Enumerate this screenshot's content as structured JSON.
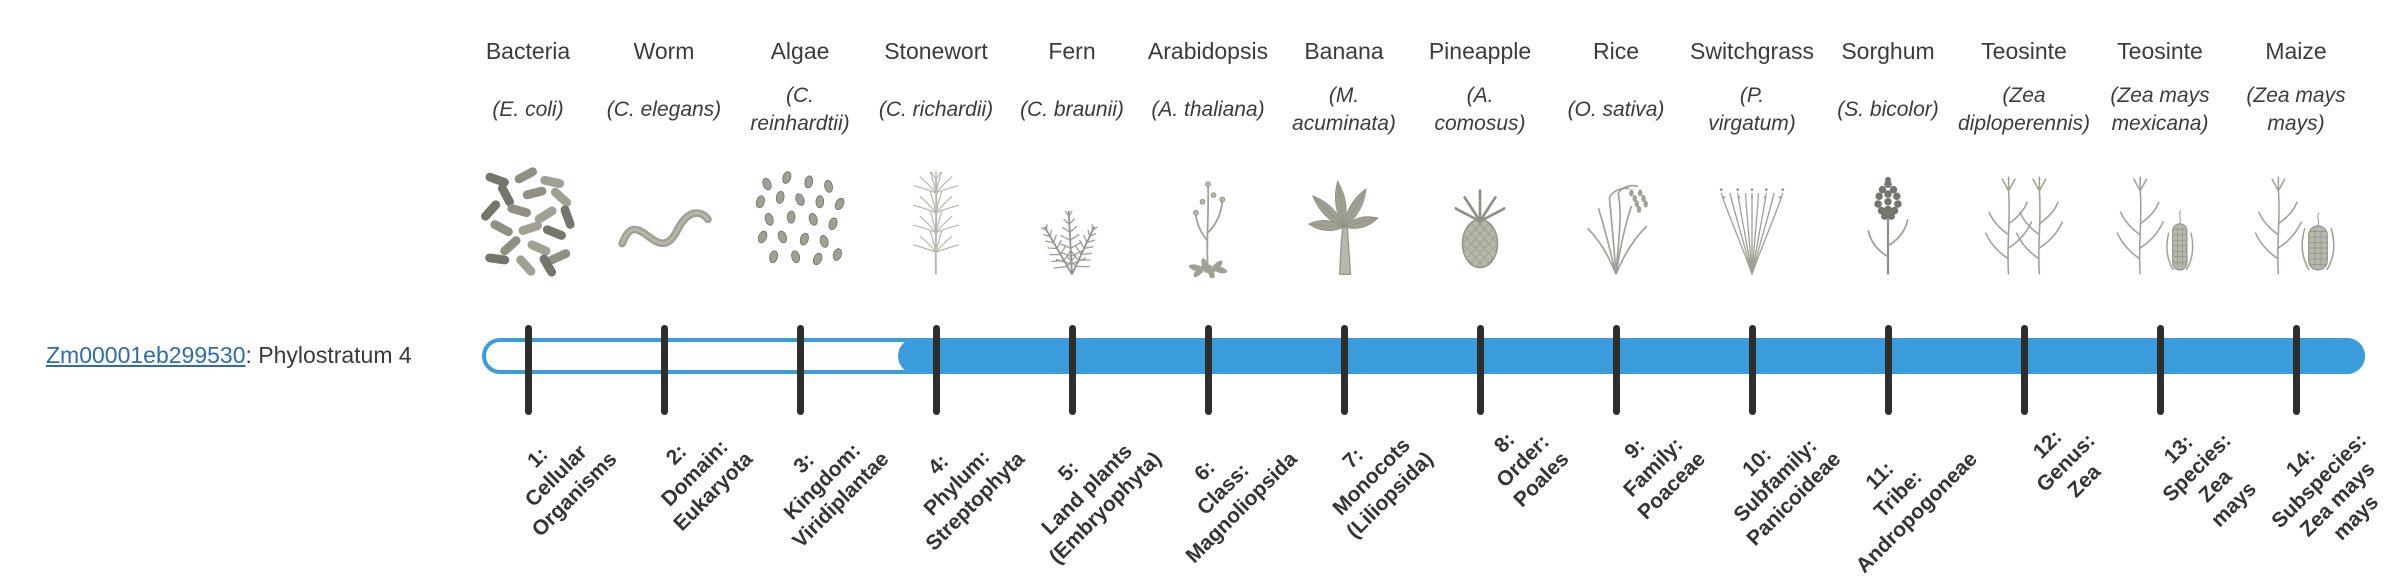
{
  "gene": {
    "id": "Zm00001eb299530",
    "rest": ": Phylostratum 4"
  },
  "colors": {
    "bar_blue": "#3A9CDB",
    "tick": "#2E2E2E",
    "link_blue": "#2B6CB3",
    "text": "#3A3A3A",
    "illustration_gray": "#8F8F84"
  },
  "columns": [
    {
      "common": "Bacteria",
      "scientific": "(E. coli)",
      "icon": "bacteria-icon",
      "stratum_label": "1:\nCellular\nOrganisms"
    },
    {
      "common": "Worm",
      "scientific": "(C. elegans)",
      "icon": "worm-icon",
      "stratum_label": "2:\nDomain:\nEukaryota"
    },
    {
      "common": "Algae",
      "scientific": "(C.\nreinhardtii)",
      "icon": "algae-icon",
      "stratum_label": "3:\nKingdom:\nViridiplantae"
    },
    {
      "common": "Stonewort",
      "scientific": "(C. richardii)",
      "icon": "stonewort-icon",
      "stratum_label": "4:\nPhylum:\nStreptophyta"
    },
    {
      "common": "Fern",
      "scientific": "(C. braunii)",
      "icon": "fern-icon",
      "stratum_label": "5:\nLand plants\n(Embryophyta)"
    },
    {
      "common": "Arabidopsis",
      "scientific": "(A. thaliana)",
      "icon": "arabidopsis-icon",
      "stratum_label": "6:\nClass:\nMagnoliopsida"
    },
    {
      "common": "Banana",
      "scientific": "(M.\nacuminata)",
      "icon": "banana-icon",
      "stratum_label": "7:\nMonocots\n(Liliopsida)"
    },
    {
      "common": "Pineapple",
      "scientific": "(A.\ncomosus)",
      "icon": "pineapple-icon",
      "stratum_label": "8:\nOrder:\nPoales"
    },
    {
      "common": "Rice",
      "scientific": "(O. sativa)",
      "icon": "rice-icon",
      "stratum_label": "9:\nFamily:\nPoaceae"
    },
    {
      "common": "Switchgrass",
      "scientific": "(P.\nvirgatum)",
      "icon": "switchgrass-icon",
      "stratum_label": "10:\nSubfamily:\nPanicoideae"
    },
    {
      "common": "Sorghum",
      "scientific": "(S. bicolor)",
      "icon": "sorghum-icon",
      "stratum_label": "11:\nTribe:\nAndropogoneae"
    },
    {
      "common": "Teosinte",
      "scientific": "(Zea\ndiploperennis)",
      "icon": "teosinte-icon",
      "stratum_label": "12:\nGenus:\nZea"
    },
    {
      "common": "Teosinte",
      "scientific": "(Zea mays\nmexicana)",
      "icon": "teosinte-ear-icon",
      "stratum_label": "13:\nSpecies:\nZea\nmays"
    },
    {
      "common": "Maize",
      "scientific": "(Zea mays\nmays)",
      "icon": "maize-icon",
      "stratum_label": "14:\nSubspecies:\nZea mays\nmays"
    }
  ],
  "chart_data": {
    "type": "bar",
    "gene": "Zm00001eb299530",
    "phylostratum": 4,
    "categories": [
      "1: Cellular Organisms",
      "2: Domain: Eukaryota",
      "3: Kingdom: Viridiplantae",
      "4: Phylum: Streptophyta",
      "5: Land plants (Embryophyta)",
      "6: Class: Magnoliopsida",
      "7: Monocots (Liliopsida)",
      "8: Order: Poales",
      "9: Family: Poaceae",
      "10: Subfamily: Panicoideae",
      "11: Tribe: Andropogoneae",
      "12: Genus: Zea",
      "13: Species: Zea mays",
      "14: Subspecies: Zea mays mays"
    ],
    "series": [
      {
        "name": "filled",
        "values": [
          0,
          0,
          0,
          1,
          1,
          1,
          1,
          1,
          1,
          1,
          1,
          1,
          1,
          1
        ]
      }
    ],
    "organisms": [
      "Bacteria (E. coli)",
      "Worm (C. elegans)",
      "Algae (C. reinhardtii)",
      "Stonewort (C. richardii)",
      "Fern (C. braunii)",
      "Arabidopsis (A. thaliana)",
      "Banana (M. acuminata)",
      "Pineapple (A. comosus)",
      "Rice (O. sativa)",
      "Switchgrass (P. virgatum)",
      "Sorghum (S. bicolor)",
      "Teosinte (Zea diploperennis)",
      "Teosinte (Zea mays mexicana)",
      "Maize (Zea mays mays)"
    ],
    "legend": "off",
    "grid": "off"
  }
}
